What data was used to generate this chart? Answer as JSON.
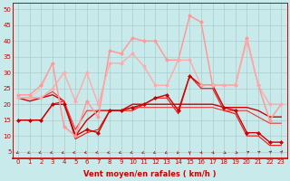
{
  "xlabel": "Vent moyen/en rafales ( km/h )",
  "background_color": "#c8eaea",
  "grid_color": "#aacccc",
  "xlim": [
    -0.5,
    23.5
  ],
  "ylim": [
    3,
    52
  ],
  "yticks": [
    5,
    10,
    15,
    20,
    25,
    30,
    35,
    40,
    45,
    50
  ],
  "xticks": [
    0,
    1,
    2,
    3,
    4,
    5,
    6,
    7,
    8,
    9,
    10,
    11,
    12,
    13,
    14,
    15,
    16,
    17,
    18,
    19,
    20,
    21,
    22,
    23
  ],
  "lines": [
    {
      "y": [
        15,
        15,
        15,
        20,
        20,
        10,
        12,
        11,
        18,
        18,
        19,
        20,
        22,
        23,
        18,
        29,
        26,
        26,
        19,
        18,
        11,
        11,
        8,
        8
      ],
      "color": "#cc0000",
      "lw": 1.0,
      "marker": "D",
      "ms": 2.0
    },
    {
      "y": [
        22,
        21,
        22,
        23,
        21,
        10,
        15,
        18,
        18,
        18,
        20,
        20,
        20,
        20,
        20,
        20,
        20,
        20,
        19,
        19,
        19,
        18,
        16,
        16
      ],
      "color": "#cc0000",
      "lw": 1.0,
      "marker": null,
      "ms": 0
    },
    {
      "y": [
        15,
        15,
        15,
        20,
        21,
        9,
        11,
        12,
        18,
        18,
        18,
        20,
        22,
        22,
        17,
        29,
        25,
        25,
        18,
        17,
        10,
        10,
        7,
        7
      ],
      "color": "#ee1111",
      "lw": 0.8,
      "marker": null,
      "ms": 0
    },
    {
      "y": [
        22,
        22,
        22,
        24,
        21,
        12,
        18,
        18,
        18,
        18,
        19,
        19,
        19,
        19,
        19,
        19,
        19,
        19,
        18,
        18,
        18,
        16,
        14,
        14
      ],
      "color": "#ee3333",
      "lw": 0.8,
      "marker": null,
      "ms": 0
    },
    {
      "y": [
        23,
        23,
        26,
        33,
        13,
        10,
        21,
        16,
        37,
        36,
        41,
        40,
        40,
        34,
        34,
        48,
        46,
        26,
        26,
        26,
        41,
        26,
        15,
        20
      ],
      "color": "#ff9999",
      "lw": 1.0,
      "marker": "D",
      "ms": 2.0
    },
    {
      "y": [
        22,
        22,
        22,
        25,
        30,
        21,
        30,
        20,
        33,
        33,
        36,
        32,
        26,
        26,
        34,
        34,
        26,
        26,
        26,
        26,
        40,
        26,
        20,
        20
      ],
      "color": "#ffaaaa",
      "lw": 1.0,
      "marker": "D",
      "ms": 2.0
    },
    {
      "y": [
        22,
        22,
        25,
        33,
        13,
        10,
        21,
        16,
        37,
        36,
        41,
        40,
        40,
        34,
        34,
        48,
        46,
        26,
        26,
        26,
        41,
        26,
        15,
        20
      ],
      "color": "#ffbbbb",
      "lw": 0.8,
      "marker": null,
      "ms": 0
    }
  ],
  "wind_dirs": [
    225,
    220,
    210,
    210,
    210,
    200,
    200,
    200,
    205,
    210,
    210,
    215,
    220,
    225,
    240,
    270,
    290,
    300,
    315,
    330,
    30,
    45,
    50,
    60
  ],
  "arrow_color": "#cc0000",
  "tick_color": "#cc0000",
  "label_color": "#cc0000",
  "tick_fontsize": 5,
  "label_fontsize": 6
}
